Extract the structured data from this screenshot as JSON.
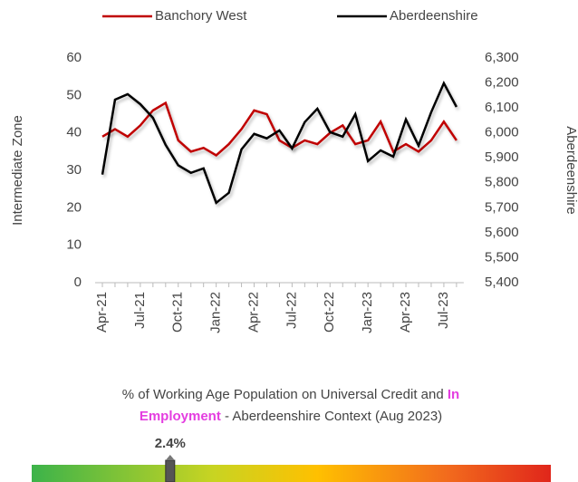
{
  "chart_data": {
    "type": "line",
    "y_label": "Intermediate Zone",
    "y2_label": "Aberdeenshire",
    "categories": [
      "Apr-21",
      null,
      null,
      "Jul-21",
      null,
      null,
      "Oct-21",
      null,
      null,
      "Jan-22",
      null,
      null,
      "Apr-22",
      null,
      null,
      "Jul-22",
      null,
      null,
      "Oct-22",
      null,
      null,
      "Jan-23",
      null,
      null,
      "Apr-23",
      null,
      null,
      "Jul-23",
      null
    ],
    "series": [
      {
        "name": "Banchory West",
        "color": "#c00000",
        "values": [
          39,
          41,
          39,
          42,
          46,
          48,
          38,
          35,
          36,
          34,
          37,
          41,
          46,
          45,
          38,
          36,
          38,
          37,
          40,
          42,
          37,
          38,
          43,
          35,
          37,
          35,
          38,
          43,
          38
        ]
      },
      {
        "name": "Aberdeenshire",
        "color": "#000000",
        "axis": "y2",
        "values": [
          5833,
          6133,
          6155,
          6115,
          6060,
          5952,
          5870,
          5840,
          5858,
          5720,
          5760,
          5934,
          5996,
          5978,
          6010,
          5938,
          6043,
          6097,
          6003,
          5985,
          6075,
          5887,
          5930,
          5905,
          6054,
          5949,
          6083,
          6199,
          6104
        ]
      }
    ],
    "ylim": [
      0,
      60
    ],
    "yticks": [
      0,
      10,
      20,
      30,
      40,
      50,
      60
    ],
    "y2lim": [
      5400,
      6300
    ],
    "y2ticks": [
      {
        "value": 5400,
        "label": "5,400"
      },
      {
        "value": 5500,
        "label": "5,500"
      },
      {
        "value": 5600,
        "label": "5,600"
      },
      {
        "value": 5700,
        "label": "5,700"
      },
      {
        "value": 5800,
        "label": "5,800"
      },
      {
        "value": 5900,
        "label": "5,900"
      },
      {
        "value": 6000,
        "label": "6,000"
      },
      {
        "value": 6100,
        "label": "6,100"
      },
      {
        "value": 6200,
        "label": "6,200"
      },
      {
        "value": 6300,
        "label": "6,300"
      }
    ],
    "legend": "top"
  },
  "gauge": {
    "title": [
      "% of Working Age Population on Universal Credit and",
      "In",
      "Employment",
      "- Aberdeenshire Context (Aug 2023)"
    ],
    "value": 2.4,
    "value_label": "2.4%",
    "xlim": [
      0,
      9
    ]
  }
}
